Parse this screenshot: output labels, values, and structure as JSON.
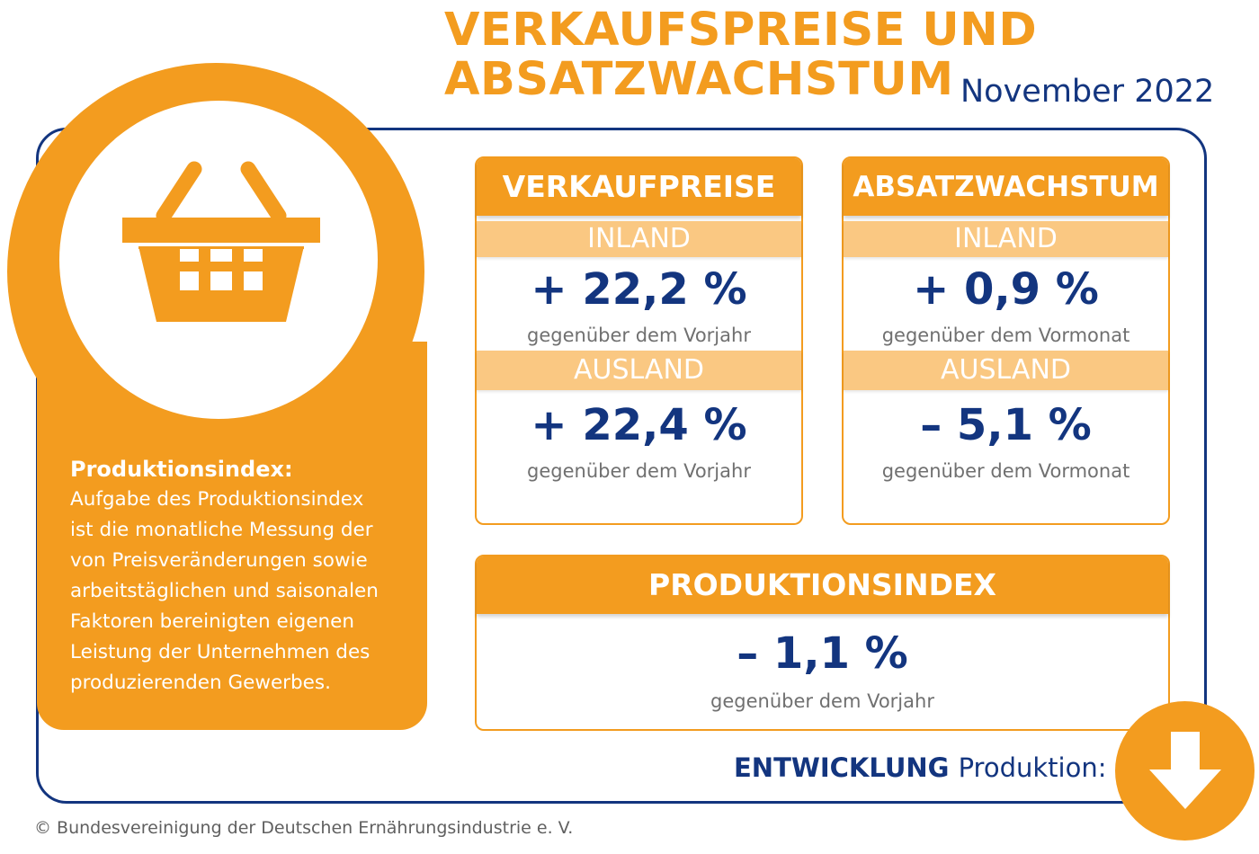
{
  "header": {
    "title_line1": "VERKAUFSPREISE UND",
    "title_line2": "ABSATZWACHSTUM",
    "date": "November 2022"
  },
  "sidebar": {
    "icon": "shopping-basket-icon",
    "heading": "Produktionsindex:",
    "lines": [
      "Aufgabe des Produktionsindex",
      "ist die monatliche Messung der",
      "von Preisveränderungen sowie",
      "arbeitstäglichen und saisonalen",
      "Faktoren bereinigten eigenen",
      "Leistung der Unternehmen des",
      "produzierenden Gewerbes."
    ]
  },
  "verkaufspreise": {
    "title": "VERKAUFPREISE",
    "inland_label": "INLAND",
    "inland_value": "+ 22,2 %",
    "inland_note": "gegenüber dem Vorjahr",
    "ausland_label": "AUSLAND",
    "ausland_value": "+ 22,4 %",
    "ausland_note": "gegenüber dem Vorjahr"
  },
  "absatzwachstum": {
    "title": "ABSATZWACHSTUM",
    "inland_label": "INLAND",
    "inland_value": "+ 0,9 %",
    "inland_note": "gegenüber dem Vormonat",
    "ausland_label": "AUSLAND",
    "ausland_value": "– 5,1 %",
    "ausland_note": "gegenüber dem Vormonat"
  },
  "produktionsindex": {
    "title": "PRODUKTIONSINDEX",
    "value": "– 1,1 %",
    "note": "gegenüber dem Vorjahr"
  },
  "entwicklung": {
    "label_bold": "ENTWICKLUNG",
    "label_light": "Produktion:",
    "icon": "arrow-down-icon"
  },
  "copyright": "© Bundesvereinigung der Deutschen Ernährungsindustrie e. V.",
  "colors": {
    "orange": "#f39c1f",
    "light_orange": "#fac882",
    "navy": "#13357f",
    "gray": "#707070"
  }
}
